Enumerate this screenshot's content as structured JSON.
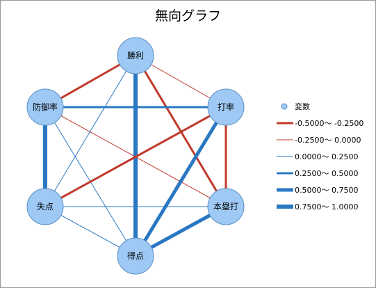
{
  "title": "無向グラフ",
  "colors": {
    "negative": "#c0392b",
    "positive": "#2a78c2",
    "node_fill": "#9ec9f5",
    "node_stroke": "#5b8fc4"
  },
  "nodes": [
    {
      "id": "win",
      "label": "勝利"
    },
    {
      "id": "hit",
      "label": "打率"
    },
    {
      "id": "hr",
      "label": "本塁打"
    },
    {
      "id": "runs",
      "label": "得点"
    },
    {
      "id": "runs_allowed",
      "label": "失点"
    },
    {
      "id": "era",
      "label": "防御率"
    }
  ],
  "edges": [
    {
      "from": "win",
      "to": "era",
      "sign": "negative",
      "band": 1
    },
    {
      "from": "win",
      "to": "hit",
      "sign": "negative",
      "band": 0
    },
    {
      "from": "win",
      "to": "hr",
      "sign": "negative",
      "band": 1
    },
    {
      "from": "win",
      "to": "runs",
      "sign": "positive",
      "band": 3
    },
    {
      "from": "win",
      "to": "runs_allowed",
      "sign": "positive",
      "band": 0
    },
    {
      "from": "era",
      "to": "hit",
      "sign": "positive",
      "band": 1
    },
    {
      "from": "era",
      "to": "runs_allowed",
      "sign": "positive",
      "band": 3
    },
    {
      "from": "era",
      "to": "hr",
      "sign": "negative",
      "band": 0
    },
    {
      "from": "era",
      "to": "runs",
      "sign": "positive",
      "band": 0
    },
    {
      "from": "hit",
      "to": "hr",
      "sign": "negative",
      "band": 1
    },
    {
      "from": "hit",
      "to": "runs_allowed",
      "sign": "negative",
      "band": 1
    },
    {
      "from": "hit",
      "to": "runs",
      "sign": "positive",
      "band": 2
    },
    {
      "from": "runs_allowed",
      "to": "hr",
      "sign": "positive",
      "band": 0
    },
    {
      "from": "runs_allowed",
      "to": "runs",
      "sign": "positive",
      "band": 0
    },
    {
      "from": "runs",
      "to": "hr",
      "sign": "positive",
      "band": 2
    }
  ],
  "legend": {
    "variable_label": "変数",
    "items": [
      {
        "label": "-0.5000～ -0.2500",
        "sign": "negative",
        "band": 1
      },
      {
        "label": "-0.2500～ 0.0000",
        "sign": "negative",
        "band": 0
      },
      {
        "label": "0.0000～ 0.2500",
        "sign": "positive",
        "band": 0
      },
      {
        "label": "0.2500～ 0.5000",
        "sign": "positive",
        "band": 1
      },
      {
        "label": "0.5000～ 0.7500",
        "sign": "positive",
        "band": 2
      },
      {
        "label": "0.7500～ 1.0000",
        "sign": "positive",
        "band": 3
      }
    ]
  }
}
